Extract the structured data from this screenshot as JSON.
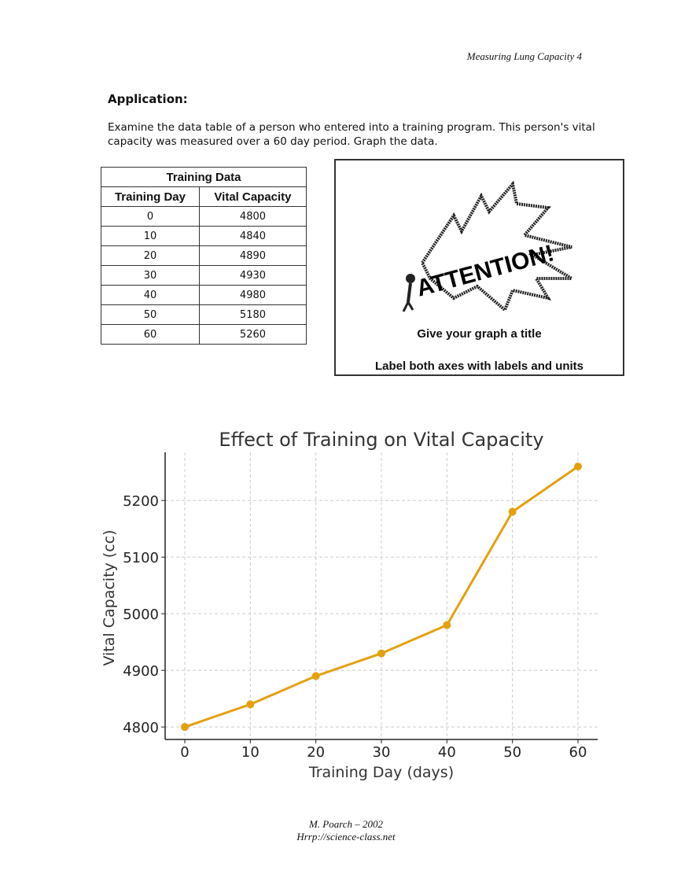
{
  "header": {
    "running_title": "Measuring Lung Capacity 4"
  },
  "application": {
    "heading": "Application:",
    "instructions": "Examine the data table of a person who entered into a training program. This person's vital capacity was measured over a 60 day period. Graph the data."
  },
  "table": {
    "title": "Training Data",
    "columns": [
      "Training Day",
      "Vital Capacity"
    ],
    "rows": [
      [
        "0",
        "4800"
      ],
      [
        "10",
        "4840"
      ],
      [
        "20",
        "4890"
      ],
      [
        "30",
        "4930"
      ],
      [
        "40",
        "4980"
      ],
      [
        "50",
        "5180"
      ],
      [
        "60",
        "5260"
      ]
    ]
  },
  "attention": {
    "burst_text": "ATTENTION!",
    "line1": "Give your graph a title",
    "line2": "Label both axes with labels and units"
  },
  "chart_data": {
    "type": "line",
    "title": "Effect of Training on Vital Capacity",
    "xlabel": "Training Day (days)",
    "ylabel": "Vital Capacity (cc)",
    "x": [
      0,
      10,
      20,
      30,
      40,
      50,
      60
    ],
    "y": [
      4800,
      4840,
      4890,
      4930,
      4980,
      5180,
      5260
    ],
    "xticks": [
      0,
      10,
      20,
      30,
      40,
      50,
      60
    ],
    "yticks": [
      4800,
      4900,
      5000,
      5100,
      5200
    ],
    "xlim": [
      -3,
      63
    ],
    "ylim": [
      4778,
      5285
    ],
    "grid": true,
    "line_color": "#e5a00d"
  },
  "footer": {
    "author": "M. Poarch – 2002",
    "url": "Hrrp://science-class.net"
  }
}
